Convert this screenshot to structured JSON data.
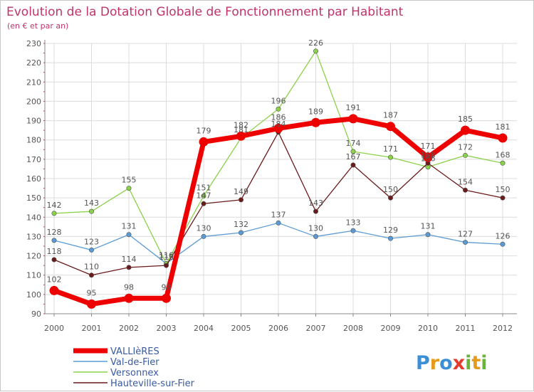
{
  "chart_data": {
    "type": "line",
    "title": "Evolution de la Dotation Globale de Fonctionnement par Habitant",
    "subtitle": "(en € et par an)",
    "xlabel": "",
    "ylabel": "",
    "categories": [
      "2000",
      "2001",
      "2002",
      "2003",
      "2004",
      "2005",
      "2006",
      "2007",
      "2008",
      "2009",
      "2010",
      "2011",
      "2012"
    ],
    "ylim": [
      90,
      230
    ],
    "yticks": [
      90,
      100,
      110,
      120,
      130,
      140,
      150,
      160,
      170,
      180,
      190,
      200,
      210,
      220,
      230
    ],
    "grid": true,
    "legend_position": "bottom-left",
    "series": [
      {
        "name": "Val-de-Fier",
        "color": "#5b9bd5",
        "values": [
          128,
          123,
          131,
          116,
          130,
          132,
          137,
          130,
          133,
          129,
          131,
          127,
          126
        ]
      },
      {
        "name": "Versonnex",
        "color": "#8bd24a",
        "values": [
          142,
          143,
          155,
          116,
          151,
          181,
          196,
          226,
          174,
          171,
          166,
          172,
          168
        ]
      },
      {
        "name": "Hauteville-sur-Fier",
        "color": "#6b1a1a",
        "values": [
          118,
          110,
          114,
          115,
          147,
          149,
          184,
          143,
          167,
          150,
          168,
          154,
          150
        ]
      },
      {
        "name": "VALLIèRES",
        "color": "#ee0000",
        "values": [
          102,
          95,
          98,
          98,
          179,
          182,
          186,
          189,
          191,
          187,
          171,
          185,
          181
        ]
      }
    ],
    "legend_order": [
      "VALLIèRES",
      "Val-de-Fier",
      "Versonnex",
      "Hauteville-sur-Fier"
    ]
  },
  "brand": {
    "text": "Proxiti",
    "letters": [
      "P",
      "r",
      "o",
      "x",
      "i",
      "t",
      "i"
    ]
  }
}
